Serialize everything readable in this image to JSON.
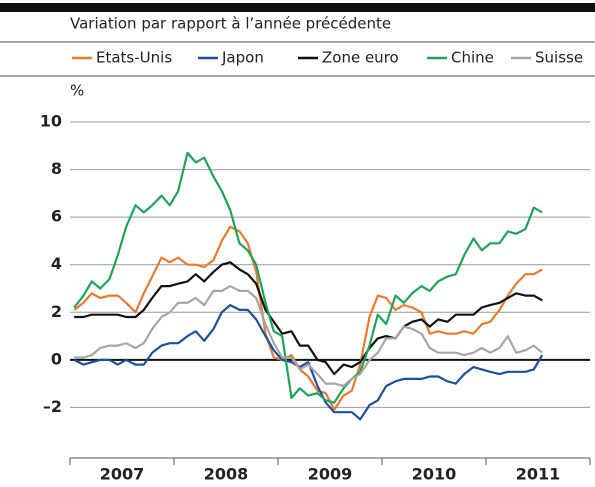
{
  "chart_data": {
    "type": "line",
    "subtitle": "Variation par rapport à l’année précédente",
    "y_label": "%",
    "xlim": [
      2007,
      2012
    ],
    "xticks": [
      2007,
      2008,
      2009,
      2010,
      2011,
      2012
    ],
    "year_labels": [
      "2007",
      "2008",
      "2009",
      "2010",
      "2011"
    ],
    "ylim": [
      -4,
      10
    ],
    "yticks": [
      {
        "value": -2,
        "label": "–2"
      },
      0,
      2,
      4,
      6,
      8,
      10
    ],
    "grid": true,
    "x": [
      2007.04,
      2007.13,
      2007.21,
      2007.29,
      2007.38,
      2007.46,
      2007.54,
      2007.63,
      2007.71,
      2007.79,
      2007.88,
      2007.96,
      2008.04,
      2008.13,
      2008.21,
      2008.29,
      2008.38,
      2008.46,
      2008.54,
      2008.63,
      2008.71,
      2008.79,
      2008.88,
      2008.96,
      2009.04,
      2009.13,
      2009.21,
      2009.29,
      2009.38,
      2009.46,
      2009.54,
      2009.63,
      2009.71,
      2009.79,
      2009.88,
      2009.96,
      2010.04,
      2010.13,
      2010.21,
      2010.29,
      2010.38,
      2010.46,
      2010.54,
      2010.63,
      2010.71,
      2010.79,
      2010.88,
      2010.96,
      2011.04,
      2011.13,
      2011.21,
      2011.29,
      2011.38,
      2011.46,
      2011.54
    ],
    "series": [
      {
        "name": "Etats-Unis",
        "color": "#ea7a2f",
        "values": [
          2.1,
          2.4,
          2.8,
          2.6,
          2.7,
          2.7,
          2.4,
          2.0,
          2.8,
          3.5,
          4.3,
          4.1,
          4.3,
          4.0,
          4.0,
          3.9,
          4.2,
          5.0,
          5.6,
          5.4,
          4.9,
          3.7,
          1.1,
          0.1,
          0.0,
          0.2,
          -0.4,
          -0.7,
          -1.3,
          -1.4,
          -2.1,
          -1.5,
          -1.3,
          -0.2,
          1.8,
          2.7,
          2.6,
          2.1,
          2.3,
          2.2,
          2.0,
          1.1,
          1.2,
          1.1,
          1.1,
          1.2,
          1.1,
          1.5,
          1.6,
          2.1,
          2.7,
          3.2,
          3.6,
          3.6,
          3.8
        ]
      },
      {
        "name": "Japon",
        "color": "#1f4e9c",
        "values": [
          0.0,
          -0.2,
          -0.1,
          0.0,
          0.0,
          -0.2,
          0.0,
          -0.2,
          -0.2,
          0.3,
          0.6,
          0.7,
          0.7,
          1.0,
          1.2,
          0.8,
          1.3,
          2.0,
          2.3,
          2.1,
          2.1,
          1.7,
          1.0,
          0.4,
          0.0,
          -0.1,
          -0.3,
          -0.1,
          -1.1,
          -1.8,
          -2.2,
          -2.2,
          -2.2,
          -2.5,
          -1.9,
          -1.7,
          -1.1,
          -0.9,
          -0.8,
          -0.8,
          -0.8,
          -0.7,
          -0.7,
          -0.9,
          -1.0,
          -0.6,
          -0.3,
          -0.4,
          -0.5,
          -0.6,
          -0.5,
          -0.5,
          -0.5,
          -0.4,
          0.2
        ]
      },
      {
        "name": "Zone euro",
        "color": "#111111",
        "values": [
          1.8,
          1.8,
          1.9,
          1.9,
          1.9,
          1.9,
          1.8,
          1.8,
          2.1,
          2.6,
          3.1,
          3.1,
          3.2,
          3.3,
          3.6,
          3.3,
          3.7,
          4.0,
          4.1,
          3.8,
          3.6,
          3.2,
          2.1,
          1.6,
          1.1,
          1.2,
          0.6,
          0.6,
          0.0,
          -0.1,
          -0.6,
          -0.2,
          -0.3,
          -0.1,
          0.5,
          0.9,
          1.0,
          0.9,
          1.4,
          1.6,
          1.7,
          1.4,
          1.7,
          1.6,
          1.9,
          1.9,
          1.9,
          2.2,
          2.3,
          2.4,
          2.6,
          2.8,
          2.7,
          2.7,
          2.5
        ]
      },
      {
        "name": "Chine",
        "color": "#1fa35a",
        "values": [
          2.2,
          2.7,
          3.3,
          3.0,
          3.4,
          4.4,
          5.6,
          6.5,
          6.2,
          6.5,
          6.9,
          6.5,
          7.1,
          8.7,
          8.3,
          8.5,
          7.7,
          7.1,
          6.3,
          4.9,
          4.6,
          4.0,
          2.4,
          1.2,
          1.0,
          -1.6,
          -1.2,
          -1.5,
          -1.4,
          -1.7,
          -1.8,
          -1.2,
          -0.8,
          -0.5,
          0.6,
          1.9,
          1.5,
          2.7,
          2.4,
          2.8,
          3.1,
          2.9,
          3.3,
          3.5,
          3.6,
          4.4,
          5.1,
          4.6,
          4.9,
          4.9,
          5.4,
          5.3,
          5.5,
          6.4,
          6.2
        ]
      },
      {
        "name": "Suisse",
        "color": "#a6a6a6",
        "values": [
          0.1,
          0.1,
          0.2,
          0.5,
          0.6,
          0.6,
          0.7,
          0.5,
          0.7,
          1.3,
          1.8,
          2.0,
          2.4,
          2.4,
          2.6,
          2.3,
          2.9,
          2.9,
          3.1,
          2.9,
          2.9,
          2.6,
          1.5,
          0.7,
          0.1,
          0.1,
          -0.4,
          -0.2,
          -0.6,
          -1.0,
          -1.0,
          -1.1,
          -0.8,
          -0.6,
          0.0,
          0.3,
          0.9,
          0.9,
          1.4,
          1.3,
          1.1,
          0.5,
          0.3,
          0.3,
          0.3,
          0.2,
          0.3,
          0.5,
          0.3,
          0.5,
          1.0,
          0.3,
          0.4,
          0.6,
          0.3
        ]
      }
    ]
  }
}
